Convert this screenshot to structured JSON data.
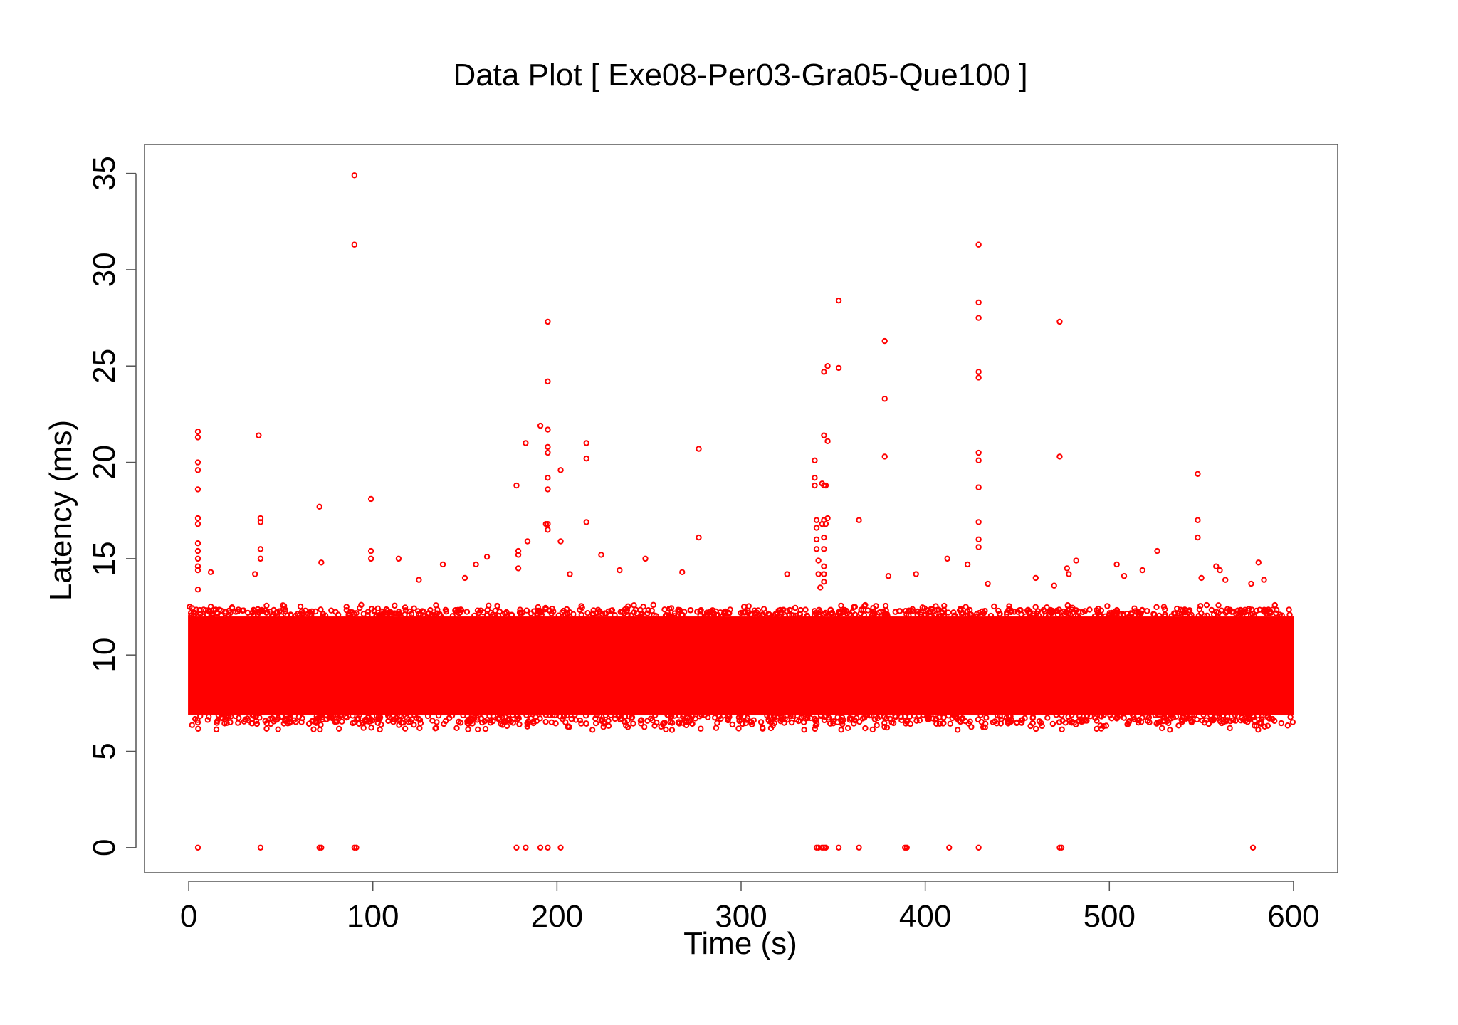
{
  "chart_data": {
    "type": "scatter",
    "title": "Data Plot [ Exe08-Per03-Gra05-Que100 ]",
    "xlabel": "Time (s)",
    "ylabel": "Latency (ms)",
    "xlim": [
      -24,
      624
    ],
    "ylim": [
      -1.3,
      36.5
    ],
    "xticks": [
      0,
      100,
      200,
      300,
      400,
      500,
      600
    ],
    "yticks": [
      0,
      5,
      10,
      15,
      20,
      25,
      30,
      35
    ],
    "marker": "open-circle",
    "grid": false,
    "series_color": "#ff0000",
    "dense_band": {
      "x_range": [
        0,
        600
      ],
      "y_core": [
        6.9,
        12.0
      ],
      "y_min": 6.1,
      "y_max": 12.6
    },
    "outliers": [
      [
        5,
        21.6
      ],
      [
        5,
        21.3
      ],
      [
        5,
        20.0
      ],
      [
        5,
        19.6
      ],
      [
        5,
        18.6
      ],
      [
        5,
        17.1
      ],
      [
        5,
        16.8
      ],
      [
        5,
        15.8
      ],
      [
        5,
        15.4
      ],
      [
        5,
        15.0
      ],
      [
        5,
        14.6
      ],
      [
        5,
        14.4
      ],
      [
        5,
        13.4
      ],
      [
        12,
        14.3
      ],
      [
        36,
        14.2
      ],
      [
        38,
        21.4
      ],
      [
        39,
        17.1
      ],
      [
        39,
        16.9
      ],
      [
        39,
        15.5
      ],
      [
        39,
        15.0
      ],
      [
        71,
        17.7
      ],
      [
        72,
        14.8
      ],
      [
        90,
        34.9
      ],
      [
        90,
        31.3
      ],
      [
        99,
        18.1
      ],
      [
        99,
        15.4
      ],
      [
        99,
        15.0
      ],
      [
        114,
        15.0
      ],
      [
        125,
        13.9
      ],
      [
        138,
        14.7
      ],
      [
        150,
        14.0
      ],
      [
        156,
        14.7
      ],
      [
        162,
        15.1
      ],
      [
        178,
        18.8
      ],
      [
        179,
        15.4
      ],
      [
        179,
        15.2
      ],
      [
        179,
        14.5
      ],
      [
        183,
        21.0
      ],
      [
        184,
        15.9
      ],
      [
        191,
        21.9
      ],
      [
        194,
        16.8
      ],
      [
        195,
        27.3
      ],
      [
        195,
        24.2
      ],
      [
        195,
        21.7
      ],
      [
        195,
        20.8
      ],
      [
        195,
        20.5
      ],
      [
        195,
        19.2
      ],
      [
        195,
        18.6
      ],
      [
        195,
        16.8
      ],
      [
        195,
        16.5
      ],
      [
        202,
        19.6
      ],
      [
        202,
        15.9
      ],
      [
        207,
        14.2
      ],
      [
        216,
        21.0
      ],
      [
        216,
        20.2
      ],
      [
        216,
        16.9
      ],
      [
        224,
        15.2
      ],
      [
        234,
        14.4
      ],
      [
        248,
        15.0
      ],
      [
        268,
        14.3
      ],
      [
        277,
        20.7
      ],
      [
        277,
        16.1
      ],
      [
        325,
        14.2
      ],
      [
        340,
        20.1
      ],
      [
        340,
        19.2
      ],
      [
        340,
        18.8
      ],
      [
        341,
        17.0
      ],
      [
        341,
        16.6
      ],
      [
        341,
        16.0
      ],
      [
        341,
        15.5
      ],
      [
        342,
        14.9
      ],
      [
        342,
        14.2
      ],
      [
        343,
        13.5
      ],
      [
        344,
        18.9
      ],
      [
        344,
        16.8
      ],
      [
        345,
        24.7
      ],
      [
        345,
        21.4
      ],
      [
        345,
        18.8
      ],
      [
        345,
        17.0
      ],
      [
        345,
        16.1
      ],
      [
        345,
        15.5
      ],
      [
        345,
        14.6
      ],
      [
        345,
        14.2
      ],
      [
        345,
        13.8
      ],
      [
        346,
        18.8
      ],
      [
        346,
        16.8
      ],
      [
        347,
        25.0
      ],
      [
        347,
        21.1
      ],
      [
        347,
        17.1
      ],
      [
        353,
        28.4
      ],
      [
        353,
        24.9
      ],
      [
        364,
        17.0
      ],
      [
        378,
        26.3
      ],
      [
        378,
        23.3
      ],
      [
        378,
        20.3
      ],
      [
        380,
        14.1
      ],
      [
        395,
        14.2
      ],
      [
        412,
        15.0
      ],
      [
        423,
        14.7
      ],
      [
        429,
        31.3
      ],
      [
        429,
        28.3
      ],
      [
        429,
        27.5
      ],
      [
        429,
        24.7
      ],
      [
        429,
        24.4
      ],
      [
        429,
        20.5
      ],
      [
        429,
        20.1
      ],
      [
        429,
        18.7
      ],
      [
        429,
        16.9
      ],
      [
        429,
        16.0
      ],
      [
        429,
        15.6
      ],
      [
        434,
        13.7
      ],
      [
        460,
        14.0
      ],
      [
        470,
        13.6
      ],
      [
        473,
        27.3
      ],
      [
        473,
        20.3
      ],
      [
        477,
        14.5
      ],
      [
        478,
        14.2
      ],
      [
        482,
        14.9
      ],
      [
        504,
        14.7
      ],
      [
        508,
        14.1
      ],
      [
        518,
        14.4
      ],
      [
        526,
        15.4
      ],
      [
        548,
        19.4
      ],
      [
        548,
        17.0
      ],
      [
        548,
        16.1
      ],
      [
        550,
        14.0
      ],
      [
        558,
        14.6
      ],
      [
        560,
        14.4
      ],
      [
        563,
        13.9
      ],
      [
        577,
        13.7
      ],
      [
        581,
        14.8
      ],
      [
        584,
        13.9
      ]
    ],
    "zeros": [
      5,
      39,
      71,
      72,
      90,
      91,
      178,
      183,
      191,
      195,
      202,
      341,
      342,
      344,
      345,
      346,
      353,
      364,
      389,
      390,
      413,
      429,
      473,
      474,
      578
    ]
  }
}
